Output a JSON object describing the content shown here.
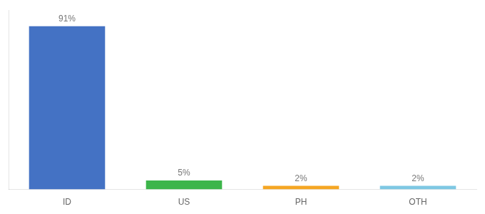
{
  "chart_data": {
    "type": "bar",
    "categories": [
      "ID",
      "US",
      "PH",
      "OTH"
    ],
    "values": [
      91,
      5,
      2,
      2
    ],
    "value_labels": [
      "91%",
      "5%",
      "2%",
      "2%"
    ],
    "data_labels": true,
    "colors": [
      "#4472c4",
      "#3cb54a",
      "#f5a623",
      "#7ec8e3"
    ],
    "ylim": [
      0,
      100
    ],
    "grid": false,
    "tick_labels": "x"
  }
}
